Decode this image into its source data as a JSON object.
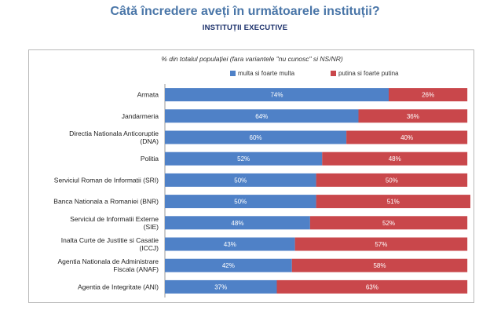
{
  "header": {
    "title": "Câtă încredere aveți în următoarele instituții?",
    "subtitle": "INSTITUȚII EXECUTIVE"
  },
  "chart_data": {
    "type": "bar",
    "orientation": "horizontal",
    "stacked": true,
    "note": "% din totalul populației (fara variantele \"nu cunosc\" si NS/NR)",
    "categories": [
      [
        "Armata"
      ],
      [
        "Jandarmeria"
      ],
      [
        "Directia Nationala Anticoruptie",
        "(DNA)"
      ],
      [
        "Politia"
      ],
      [
        "Serviciul Roman de Informatii (SRI)"
      ],
      [
        "Banca Nationala a Romaniei (BNR)"
      ],
      [
        "Serviciul de Informatii Externe",
        "(SIE)"
      ],
      [
        "Inalta Curte de Justitie si Casatie",
        "(ICCJ)"
      ],
      [
        "Agentia Nationala de Administrare",
        "Fiscala (ANAF)"
      ],
      [
        "Agentia de Integritate (ANI)"
      ]
    ],
    "series": [
      {
        "name": "multa si foarte multa",
        "color": "#4f81c7",
        "values": [
          74,
          64,
          60,
          52,
          50,
          50,
          48,
          43,
          42,
          37
        ],
        "labels": [
          "74%",
          "64%",
          "60%",
          "52%",
          "50%",
          "50%",
          "48%",
          "43%",
          "42%",
          "37%"
        ]
      },
      {
        "name": "putina si foarte putina",
        "color": "#c9474b",
        "values": [
          26,
          36,
          40,
          48,
          50,
          51,
          52,
          57,
          58,
          63
        ],
        "labels": [
          "26%",
          "36%",
          "40%",
          "48%",
          "50%",
          "51%",
          "52%",
          "57%",
          "58%",
          "63%"
        ]
      }
    ],
    "xlim": [
      0,
      101
    ],
    "grid": false,
    "legend_position": "top"
  }
}
